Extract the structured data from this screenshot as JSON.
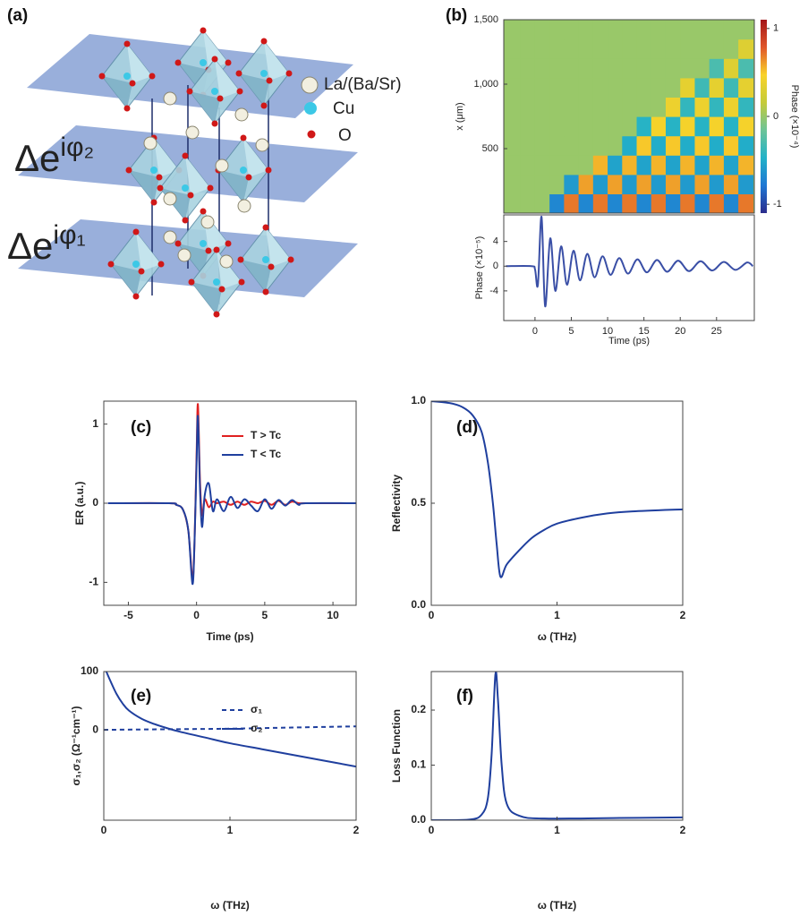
{
  "illustration": {
    "title": "(a)",
    "legend": [
      "La/(Ba/Sr)",
      "Cu",
      "O"
    ],
    "phases": [
      {
        "base": "Δe",
        "exponent": "iφ₂"
      },
      {
        "base": "Δe",
        "exponent": "iφ₁"
      }
    ]
  },
  "chart_data": [
    {
      "type": "heatmap",
      "title": "(b)",
      "ylabel": "x (μm)",
      "x": [
        -3,
        -1,
        1,
        3,
        5,
        7,
        9,
        11,
        13,
        15,
        17,
        19,
        21,
        23,
        25,
        27,
        29
      ],
      "y": [
        75,
        225,
        375,
        525,
        675,
        825,
        975,
        1125,
        1275,
        1425
      ],
      "z": [
        [
          0,
          0,
          0,
          -0.7,
          0.7,
          -0.7,
          0.7,
          -0.7,
          0.7,
          -0.7,
          0.7,
          -0.7,
          0.7,
          -0.7,
          0.7,
          -0.7,
          0.7
        ],
        [
          0,
          0,
          0,
          0,
          -0.6,
          0.6,
          -0.6,
          0.6,
          -0.6,
          0.6,
          -0.6,
          0.6,
          -0.6,
          0.6,
          -0.6,
          0.6,
          -0.6
        ],
        [
          0,
          0,
          0,
          0,
          0,
          0,
          0.55,
          -0.55,
          0.55,
          -0.55,
          0.55,
          -0.55,
          0.55,
          -0.55,
          0.55,
          -0.55,
          0.55
        ],
        [
          0,
          0,
          0,
          0,
          0,
          0,
          0,
          0,
          -0.5,
          0.5,
          -0.5,
          0.5,
          -0.5,
          0.5,
          -0.5,
          0.5,
          -0.5
        ],
        [
          0,
          0,
          0,
          0,
          0,
          0,
          0,
          0,
          0,
          -0.45,
          0.45,
          -0.45,
          0.45,
          -0.45,
          0.45,
          -0.45,
          0.45
        ],
        [
          0,
          0,
          0,
          0,
          0,
          0,
          0,
          0,
          0,
          0,
          0,
          0.4,
          -0.4,
          0.4,
          -0.4,
          0.4,
          -0.4
        ],
        [
          0,
          0,
          0,
          0,
          0,
          0,
          0,
          0,
          0,
          0,
          0,
          0,
          0.35,
          -0.35,
          0.35,
          -0.35,
          0.35
        ],
        [
          0,
          0,
          0,
          0,
          0,
          0,
          0,
          0,
          0,
          0,
          0,
          0,
          0,
          0,
          -0.3,
          0.3,
          -0.3
        ],
        [
          0,
          0,
          0,
          0,
          0,
          0,
          0,
          0,
          0,
          0,
          0,
          0,
          0,
          0,
          0,
          0,
          0.3
        ],
        [
          0,
          0,
          0,
          0,
          0,
          0,
          0,
          0,
          0,
          0,
          0,
          0,
          0,
          0,
          0,
          0,
          0
        ]
      ],
      "xlim": [
        -4.3,
        30.2
      ],
      "ylim": [
        0,
        1500
      ],
      "yticks": [
        500,
        {
          "value": 1000,
          "label": "1,000"
        },
        {
          "value": 1500,
          "label": "1,500"
        }
      ],
      "colormap": [
        "#2b2c8c",
        "#1f77d4",
        "#22b2c8",
        "#6dc498",
        "#c5cb3a",
        "#f9d32a",
        "#e0562a",
        "#a3161a"
      ],
      "colorbar": {
        "label": "Phase (×10⁻⁴)",
        "lim": [
          -1.1,
          1.1
        ],
        "ticks": [
          -1,
          0,
          1
        ]
      }
    },
    {
      "type": "line",
      "xlabel": "Time (ps)",
      "ylabel": "Phase (×10⁻⁵)",
      "x": [
        -4,
        -0.5,
        0,
        0.4,
        0.9,
        1.4,
        2.1,
        2.8,
        3.6,
        4.4,
        5.3,
        6.2,
        7.2,
        8.2,
        9.3,
        10.4,
        11.6,
        12.8,
        14.1,
        15.4,
        16.8,
        18.2,
        19.7,
        21.2,
        22.8,
        24.4,
        26,
        27.6,
        29.2,
        30
      ],
      "series": [
        {
          "color": "#3a4fa6",
          "values": [
            0,
            0,
            -0.5,
            -3,
            8,
            -6.5,
            4.5,
            -4,
            3.2,
            -3,
            2.5,
            -2.3,
            2,
            -1.8,
            1.6,
            -1.4,
            1.3,
            -1.2,
            1.1,
            -1,
            1,
            -0.9,
            0.9,
            -0.8,
            0.8,
            -0.7,
            0.7,
            -0.6,
            0.6,
            0
          ]
        }
      ],
      "xlim": [
        -4.3,
        30.2
      ],
      "ylim": [
        -8.8,
        8.3
      ],
      "xticks": [
        0,
        5,
        10,
        15,
        20,
        25
      ],
      "yticks": [
        -4,
        0,
        4
      ]
    },
    {
      "type": "line",
      "title": "(c)",
      "xlabel": "Time (ps)",
      "ylabel": "ER (a.u.)",
      "x": [
        -6.5,
        -2,
        -1.5,
        -1,
        -0.6,
        -0.3,
        -0.15,
        0,
        0.1,
        0.25,
        0.4,
        0.6,
        0.9,
        1.2,
        1.5,
        2,
        2.5,
        3,
        3.5,
        4,
        4.5,
        5,
        5.5,
        6,
        6.5,
        7,
        7.5,
        8,
        11.8
      ],
      "series": [
        {
          "name": "T > Tc",
          "color": "#e02020",
          "values": [
            0,
            0,
            -0.02,
            -0.08,
            -0.35,
            -0.95,
            -0.5,
            0.6,
            1.25,
            0.3,
            -0.15,
            0.05,
            -0.05,
            0.02,
            0,
            0.02,
            -0.02,
            0.02,
            -0.02,
            0.02,
            0,
            0.03,
            -0.02,
            0.03,
            -0.02,
            0.02,
            0,
            0,
            0
          ]
        },
        {
          "name": "T < Tc",
          "color": "#1f3f9e",
          "values": [
            0,
            0,
            -0.02,
            -0.08,
            -0.35,
            -1.02,
            -0.5,
            0.5,
            1.1,
            0.2,
            -0.3,
            0.1,
            0.25,
            -0.1,
            0.05,
            -0.1,
            0.08,
            -0.06,
            0.05,
            -0.03,
            -0.1,
            0.05,
            -0.07,
            0.04,
            -0.03,
            0.04,
            -0.02,
            0,
            0
          ]
        }
      ],
      "xlim": [
        -6.8,
        11.7
      ],
      "ylim": [
        -1.29,
        1.29
      ],
      "xticks": [
        -5,
        0,
        5,
        10
      ],
      "yticks": [
        -1,
        0,
        1
      ]
    },
    {
      "type": "line",
      "title": "(d)",
      "xlabel": "ω (THz)",
      "ylabel": "Reflectivity",
      "x": [
        0,
        0.15,
        0.25,
        0.33,
        0.4,
        0.45,
        0.49,
        0.52,
        0.55,
        0.6,
        0.7,
        0.8,
        0.9,
        1.0,
        1.2,
        1.4,
        1.6,
        2
      ],
      "series": [
        {
          "color": "#1f3f9e",
          "values": [
            1,
            0.99,
            0.97,
            0.93,
            0.85,
            0.7,
            0.5,
            0.3,
            0.14,
            0.2,
            0.27,
            0.33,
            0.37,
            0.4,
            0.43,
            0.45,
            0.46,
            0.47
          ]
        }
      ],
      "xlim": [
        0,
        2
      ],
      "ylim": [
        0,
        1
      ],
      "xticks": [
        0,
        1,
        2
      ],
      "yticks": [
        {
          "value": 0,
          "label": "0.0"
        },
        {
          "value": 0.5,
          "label": "0.5"
        },
        {
          "value": 1,
          "label": "1.0"
        }
      ]
    },
    {
      "type": "line",
      "title": "(e)",
      "xlabel": "ω (THz)",
      "ylabel": "σ₁,σ₂ (Ω⁻¹cm⁻¹)",
      "series": [
        {
          "name": "σ₁",
          "color": "#1f3f9e",
          "dashed": true,
          "x": [
            0,
            0.5,
            1,
            1.5,
            2
          ],
          "values": [
            0,
            1,
            2,
            4,
            6
          ]
        },
        {
          "name": "σ₂",
          "color": "#1f3f9e",
          "x": [
            0.02,
            0.05,
            0.1,
            0.15,
            0.2,
            0.3,
            0.4,
            0.5,
            0.6,
            0.8,
            1.0,
            1.25,
            1.5,
            1.75,
            2
          ],
          "values": [
            100,
            85,
            62,
            45,
            33,
            19,
            10,
            3,
            -3,
            -13,
            -23,
            -33,
            -43,
            -53,
            -63
          ]
        }
      ],
      "xlim": [
        0,
        2
      ],
      "ylim": [
        -155,
        100
      ],
      "xticks": [
        0,
        1,
        2
      ],
      "yticks": [
        0,
        100
      ]
    },
    {
      "type": "line",
      "title": "(f)",
      "xlabel": "ω (THz)",
      "ylabel": "Loss Function",
      "x": [
        0,
        0.3,
        0.4,
        0.45,
        0.48,
        0.51,
        0.53,
        0.56,
        0.6,
        0.7,
        0.9,
        1.5,
        2
      ],
      "series": [
        {
          "color": "#1f3f9e",
          "values": [
            0,
            0.001,
            0.01,
            0.04,
            0.12,
            0.265,
            0.22,
            0.1,
            0.03,
            0.008,
            0.003,
            0.004,
            0.005
          ]
        }
      ],
      "xlim": [
        0,
        2
      ],
      "ylim": [
        0,
        0.27
      ],
      "xticks": [
        0,
        1,
        2
      ],
      "yticks": [
        {
          "value": 0,
          "label": "0.0"
        },
        0.1,
        0.2
      ]
    }
  ]
}
